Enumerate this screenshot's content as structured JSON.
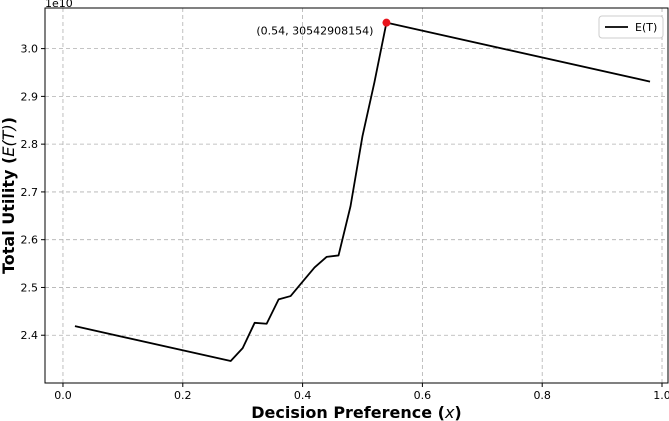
{
  "chart_data": {
    "type": "line",
    "title": "",
    "xlabel_main": "Decision Preference (",
    "xlabel_var": "x",
    "xlabel_end": ")",
    "ylabel_main": "Total Utility (",
    "ylabel_var": "E(T)",
    "ylabel_end": ")",
    "y_offset_text": "1e10",
    "xlim": [
      -0.03,
      1.01
    ],
    "ylim": [
      2.3,
      3.085
    ],
    "x_ticks": [
      0.0,
      0.2,
      0.4,
      0.6,
      0.8,
      1.0
    ],
    "x_tick_labels": [
      "0.0",
      "0.2",
      "0.4",
      "0.6",
      "0.8",
      "1.0"
    ],
    "y_ticks": [
      2.4,
      2.5,
      2.6,
      2.7,
      2.8,
      2.9,
      3.0
    ],
    "y_tick_labels": [
      "2.4",
      "2.5",
      "2.6",
      "2.7",
      "2.8",
      "2.9",
      "3.0"
    ],
    "grid": true,
    "legend_position": "top-right",
    "series": [
      {
        "name": "E(T)",
        "color": "#000000",
        "x": [
          0.02,
          0.28,
          0.3,
          0.32,
          0.34,
          0.36,
          0.38,
          0.4,
          0.42,
          0.44,
          0.46,
          0.48,
          0.5,
          0.52,
          0.54,
          0.98
        ],
        "y": [
          2.419,
          2.346,
          2.373,
          2.426,
          2.424,
          2.475,
          2.482,
          2.512,
          2.542,
          2.564,
          2.567,
          2.67,
          2.817,
          2.93,
          3.0543,
          2.931
        ]
      }
    ],
    "highlight": {
      "x": 0.54,
      "y": 3.0542908154,
      "color": "#e8141c",
      "label": "(0.54, 30542908154)"
    }
  }
}
